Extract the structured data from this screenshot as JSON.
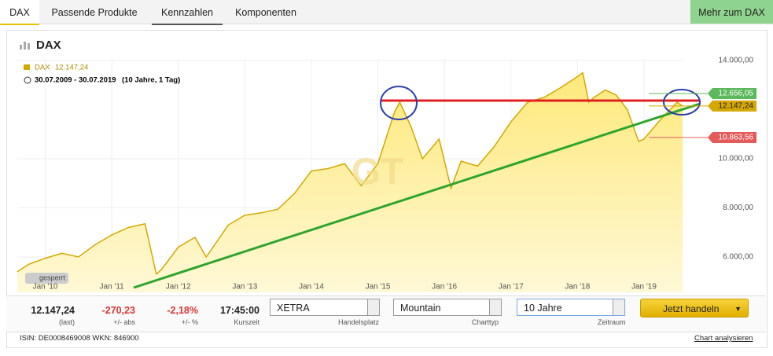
{
  "tabs": [
    "DAX",
    "Passende Produkte",
    "Kennzahlen",
    "Komponenten"
  ],
  "more_link": "Mehr zum DAX",
  "panel_title": "DAX",
  "chart_data": {
    "type": "area",
    "legend_value": "12.147,24",
    "period": "30.07.2009 - 30.07.2019",
    "period_note": "(10 Jahre, 1 Tag)",
    "watermark": "GT",
    "lock_label": "gesperrt",
    "xlim": [
      2009.58,
      2019.58
    ],
    "xticks": [
      {
        "value": 2010,
        "label": "Jan '10"
      },
      {
        "value": 2011,
        "label": "Jan '11"
      },
      {
        "value": 2012,
        "label": "Jan '12"
      },
      {
        "value": 2013,
        "label": "Jan '13"
      },
      {
        "value": 2014,
        "label": "Jan '14"
      },
      {
        "value": 2015,
        "label": "Jan '15"
      },
      {
        "value": 2016,
        "label": "Jan '16"
      },
      {
        "value": 2017,
        "label": "Jan '17"
      },
      {
        "value": 2018,
        "label": "Jan '18"
      },
      {
        "value": 2019,
        "label": "Jan '19"
      }
    ],
    "ylim": [
      4560,
      14064
    ],
    "yticks": [
      {
        "value": 6000,
        "label": "6.000,00"
      },
      {
        "value": 8000,
        "label": "8.000,00"
      },
      {
        "value": 10000,
        "label": "10.000,00"
      },
      {
        "value": 14000,
        "label": "14.000,00"
      }
    ],
    "grid": true,
    "series": [
      {
        "name": "DAX",
        "color": "#d4a800",
        "x": [
          2009.58,
          2009.75,
          2010.0,
          2010.25,
          2010.5,
          2010.75,
          2011.0,
          2011.25,
          2011.5,
          2011.67,
          2011.75,
          2012.0,
          2012.25,
          2012.42,
          2012.75,
          2013.0,
          2013.25,
          2013.5,
          2013.75,
          2014.0,
          2014.25,
          2014.5,
          2014.75,
          2015.0,
          2015.25,
          2015.33,
          2015.5,
          2015.67,
          2015.92,
          2016.1,
          2016.25,
          2016.5,
          2016.75,
          2017.0,
          2017.25,
          2017.5,
          2017.75,
          2017.92,
          2018.08,
          2018.17,
          2018.25,
          2018.42,
          2018.58,
          2018.75,
          2018.92,
          2019.0,
          2019.25,
          2019.5,
          2019.58
        ],
        "values": [
          5400,
          5700,
          5950,
          6150,
          6000,
          6500,
          6900,
          7200,
          7350,
          5300,
          5500,
          6400,
          6800,
          6000,
          7300,
          7700,
          7800,
          7950,
          8600,
          9500,
          9600,
          9800,
          8900,
          9800,
          11900,
          12300,
          11300,
          10000,
          10800,
          8800,
          9900,
          9700,
          10500,
          11500,
          12300,
          12500,
          12900,
          13200,
          13500,
          12300,
          12500,
          12800,
          12600,
          12000,
          10700,
          10800,
          11600,
          12300,
          12147
        ]
      }
    ],
    "markers": [
      {
        "value": 12656.05,
        "label": "12.656,05",
        "color": "#5cb85c"
      },
      {
        "value": 12147.24,
        "label": "12.147,24",
        "color": "#d4a800"
      },
      {
        "value": 10863.56,
        "label": "10.863,56",
        "color": "#e55b5b"
      }
    ]
  },
  "quote": [
    {
      "value": "12.147,24",
      "label": "(last)"
    },
    {
      "value": "-270,23",
      "label": "+/- abs"
    },
    {
      "value": "-2,18%",
      "label": "+/- %"
    },
    {
      "value": "17:45:00",
      "label": "Kurszeit"
    }
  ],
  "selects": [
    {
      "value": "XETRA",
      "label": "Handelsplatz"
    },
    {
      "value": "Mountain",
      "label": "Charttyp"
    },
    {
      "value": "10 Jahre",
      "label": "Zeitraum"
    }
  ],
  "button": "Jetzt handeln",
  "footer": {
    "ids": "ISIN: DE0008469008 WKN: 846900",
    "link": "Chart analysieren"
  }
}
